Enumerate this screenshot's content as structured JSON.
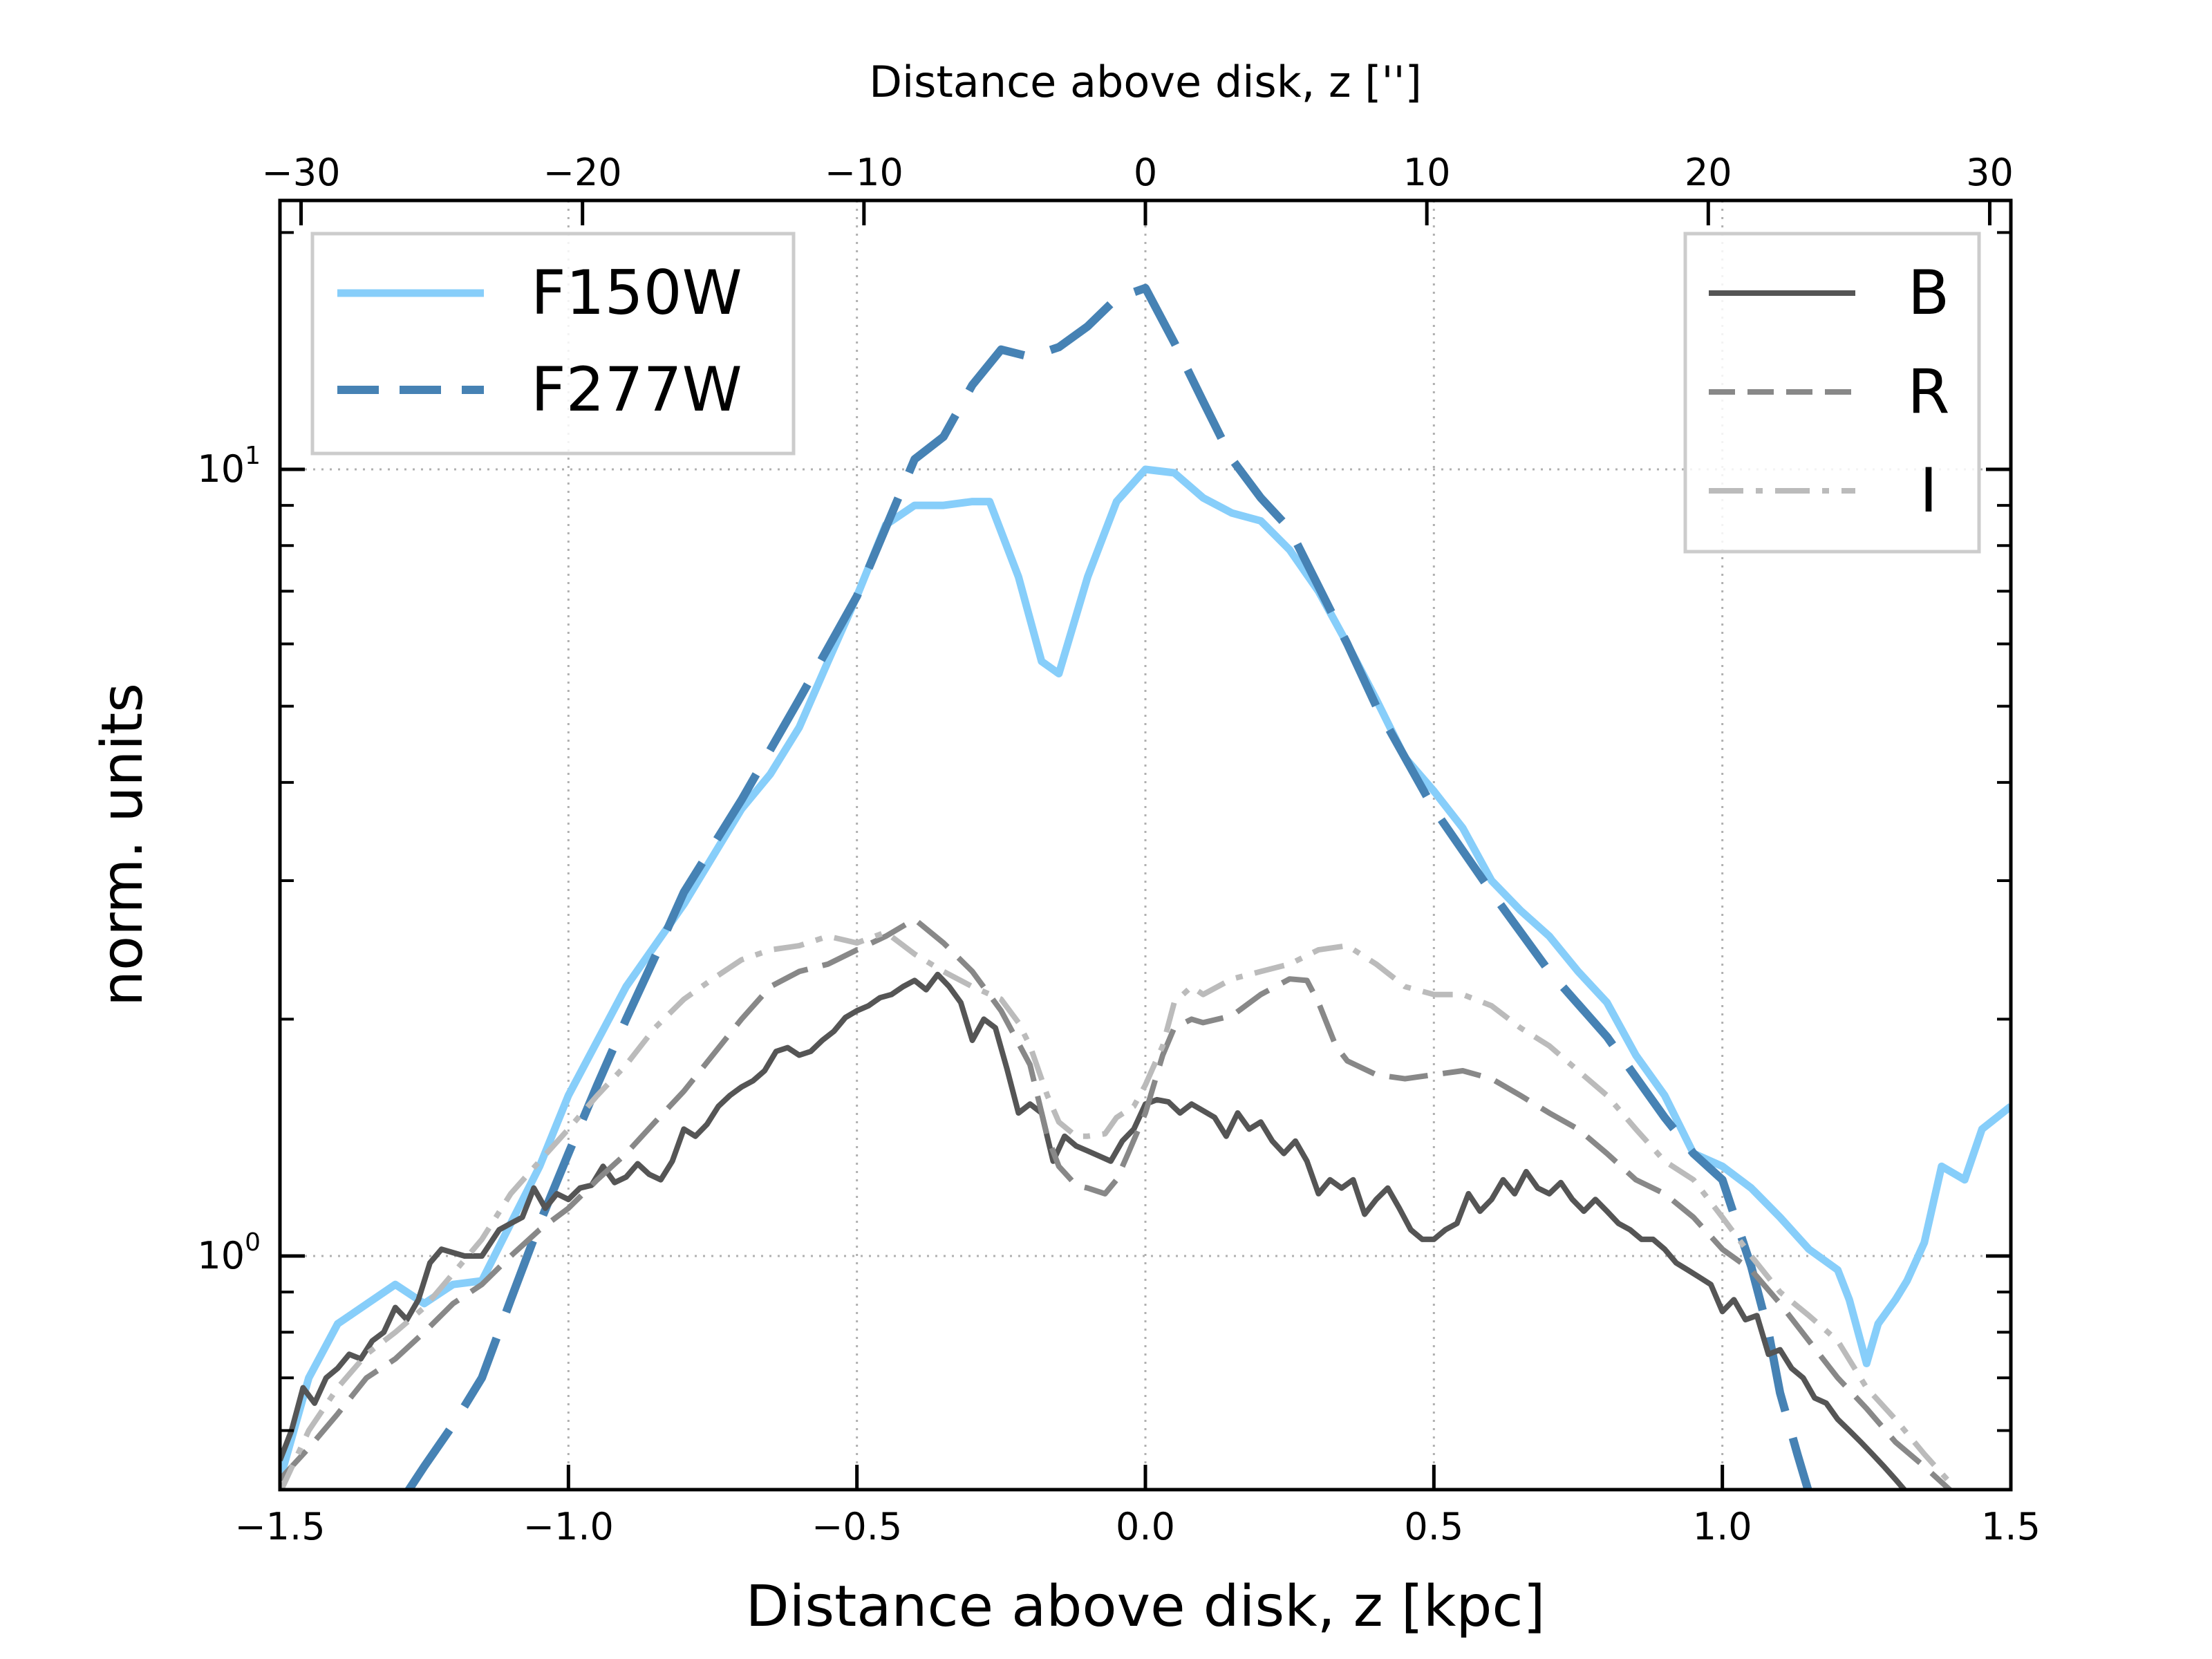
{
  "chart_data": {
    "type": "line",
    "xlabel": "Distance above disk, z [kpc]",
    "ylabel": "norm. units",
    "top_xlabel": "Distance above disk, z ['']",
    "xlim": [
      -1.5,
      1.5
    ],
    "ylim": [
      0.5,
      20
    ],
    "yscale": "log",
    "grid": true,
    "x_ticks": [
      -1.5,
      -1.0,
      -0.5,
      0.0,
      0.5,
      1.0,
      1.5
    ],
    "x_tick_labels": [
      "−1.5",
      "−1.0",
      "−0.5",
      "0.0",
      "0.5",
      "1.0",
      "1.5"
    ],
    "top_ticks": [
      -30,
      -20,
      -10,
      0,
      10,
      20,
      30
    ],
    "top_tick_labels": [
      "−30",
      "−20",
      "−10",
      "0",
      "10",
      "20",
      "30"
    ],
    "top_arcsec_per_kpc": 20.5,
    "y_tick_values": [
      1,
      10
    ],
    "y_tick_base": "10",
    "y_tick_exponents": [
      "0",
      "1"
    ],
    "legends": [
      {
        "position": "upper-left",
        "entries": [
          "F150W",
          "F277W"
        ]
      },
      {
        "position": "upper-right",
        "entries": [
          "B",
          "R",
          "I"
        ]
      }
    ],
    "series": [
      {
        "name": "F150W",
        "color": "#87CEFA",
        "style": "solid",
        "x": [
          -1.5,
          -1.45,
          -1.4,
          -1.3,
          -1.25,
          -1.2,
          -1.15,
          -1.1,
          -1.05,
          -1.0,
          -0.9,
          -0.8,
          -0.7,
          -0.65,
          -0.6,
          -0.55,
          -0.5,
          -0.45,
          -0.4,
          -0.35,
          -0.3,
          -0.27,
          -0.22,
          -0.18,
          -0.15,
          -0.1,
          -0.05,
          0.0,
          0.05,
          0.1,
          0.15,
          0.2,
          0.25,
          0.3,
          0.35,
          0.4,
          0.45,
          0.5,
          0.55,
          0.6,
          0.65,
          0.7,
          0.75,
          0.8,
          0.85,
          0.9,
          0.95,
          1.0,
          1.05,
          1.1,
          1.15,
          1.2,
          1.22,
          1.25,
          1.27,
          1.3,
          1.32,
          1.35,
          1.38,
          1.42,
          1.45,
          1.5
        ],
        "y": [
          0.52,
          0.7,
          0.82,
          0.92,
          0.87,
          0.92,
          0.93,
          1.1,
          1.3,
          1.6,
          2.2,
          2.8,
          3.7,
          4.1,
          4.7,
          5.7,
          6.9,
          8.5,
          9.0,
          9.0,
          9.1,
          9.1,
          7.3,
          5.7,
          5.5,
          7.3,
          9.1,
          10.0,
          9.9,
          9.2,
          8.8,
          8.6,
          7.9,
          7.0,
          6.0,
          5.1,
          4.3,
          3.9,
          3.5,
          3.0,
          2.75,
          2.55,
          2.3,
          2.1,
          1.8,
          1.6,
          1.35,
          1.3,
          1.22,
          1.12,
          1.02,
          0.96,
          0.88,
          0.73,
          0.82,
          0.88,
          0.93,
          1.04,
          1.3,
          1.25,
          1.45,
          1.55
        ]
      },
      {
        "name": "F277W",
        "color": "#4682B4",
        "style": "dashed",
        "x": [
          -1.28,
          -1.25,
          -1.2,
          -1.15,
          -1.1,
          -1.05,
          -1.0,
          -0.95,
          -0.9,
          -0.85,
          -0.8,
          -0.7,
          -0.6,
          -0.5,
          -0.4,
          -0.35,
          -0.3,
          -0.25,
          -0.2,
          -0.15,
          -0.1,
          -0.05,
          0.0,
          0.05,
          0.1,
          0.15,
          0.2,
          0.25,
          0.3,
          0.35,
          0.4,
          0.45,
          0.5,
          0.6,
          0.7,
          0.8,
          0.9,
          0.95,
          1.0,
          1.05,
          1.08,
          1.1,
          1.13,
          1.15
        ],
        "y": [
          0.5,
          0.54,
          0.61,
          0.7,
          0.88,
          1.1,
          1.35,
          1.65,
          2.0,
          2.4,
          2.9,
          3.8,
          5.1,
          6.9,
          10.3,
          11.0,
          12.8,
          14.2,
          13.9,
          14.3,
          15.2,
          16.5,
          17.0,
          14.5,
          12.2,
          10.3,
          9.2,
          8.4,
          7.1,
          6.0,
          5.0,
          4.3,
          3.7,
          2.9,
          2.3,
          1.9,
          1.5,
          1.35,
          1.25,
          0.97,
          0.8,
          0.67,
          0.56,
          0.5
        ]
      },
      {
        "name": "B",
        "color": "#555555",
        "style": "solid",
        "x": [
          -1.5,
          -1.48,
          -1.46,
          -1.44,
          -1.42,
          -1.4,
          -1.38,
          -1.36,
          -1.34,
          -1.32,
          -1.3,
          -1.28,
          -1.26,
          -1.24,
          -1.22,
          -1.2,
          -1.18,
          -1.15,
          -1.12,
          -1.1,
          -1.08,
          -1.06,
          -1.04,
          -1.02,
          -1.0,
          -0.98,
          -0.96,
          -0.94,
          -0.92,
          -0.9,
          -0.88,
          -0.86,
          -0.84,
          -0.82,
          -0.8,
          -0.78,
          -0.76,
          -0.74,
          -0.72,
          -0.7,
          -0.68,
          -0.66,
          -0.64,
          -0.62,
          -0.6,
          -0.58,
          -0.56,
          -0.54,
          -0.52,
          -0.5,
          -0.48,
          -0.46,
          -0.44,
          -0.42,
          -0.4,
          -0.38,
          -0.36,
          -0.34,
          -0.32,
          -0.3,
          -0.28,
          -0.26,
          -0.24,
          -0.22,
          -0.2,
          -0.18,
          -0.16,
          -0.14,
          -0.12,
          -0.1,
          -0.08,
          -0.06,
          -0.04,
          -0.02,
          0.0,
          0.02,
          0.04,
          0.06,
          0.08,
          0.1,
          0.12,
          0.14,
          0.16,
          0.18,
          0.2,
          0.22,
          0.24,
          0.26,
          0.28,
          0.3,
          0.32,
          0.34,
          0.36,
          0.38,
          0.4,
          0.42,
          0.44,
          0.46,
          0.48,
          0.5,
          0.52,
          0.54,
          0.56,
          0.58,
          0.6,
          0.62,
          0.64,
          0.66,
          0.68,
          0.7,
          0.72,
          0.74,
          0.76,
          0.78,
          0.8,
          0.82,
          0.84,
          0.86,
          0.88,
          0.9,
          0.92,
          0.94,
          0.96,
          0.98,
          1.0,
          1.02,
          1.04,
          1.06,
          1.08,
          1.1,
          1.12,
          1.14,
          1.16,
          1.18,
          1.2,
          1.22,
          1.24,
          1.26,
          1.28,
          1.3,
          1.32,
          1.34,
          1.36,
          1.38
        ],
        "y": [
          0.55,
          0.6,
          0.68,
          0.65,
          0.7,
          0.72,
          0.75,
          0.74,
          0.78,
          0.8,
          0.86,
          0.83,
          0.88,
          0.98,
          1.02,
          1.01,
          1.0,
          1.0,
          1.08,
          1.1,
          1.12,
          1.22,
          1.15,
          1.2,
          1.18,
          1.22,
          1.23,
          1.3,
          1.24,
          1.26,
          1.31,
          1.27,
          1.25,
          1.32,
          1.45,
          1.42,
          1.47,
          1.55,
          1.6,
          1.64,
          1.67,
          1.72,
          1.82,
          1.84,
          1.8,
          1.82,
          1.88,
          1.93,
          2.01,
          2.05,
          2.08,
          2.13,
          2.15,
          2.2,
          2.24,
          2.18,
          2.28,
          2.2,
          2.1,
          1.88,
          2.0,
          1.95,
          1.73,
          1.52,
          1.56,
          1.52,
          1.32,
          1.42,
          1.38,
          1.36,
          1.34,
          1.32,
          1.4,
          1.45,
          1.56,
          1.58,
          1.57,
          1.52,
          1.56,
          1.53,
          1.5,
          1.42,
          1.52,
          1.45,
          1.48,
          1.4,
          1.35,
          1.4,
          1.32,
          1.2,
          1.25,
          1.22,
          1.25,
          1.13,
          1.18,
          1.22,
          1.15,
          1.08,
          1.05,
          1.05,
          1.08,
          1.1,
          1.2,
          1.14,
          1.18,
          1.25,
          1.2,
          1.28,
          1.22,
          1.2,
          1.24,
          1.18,
          1.14,
          1.18,
          1.14,
          1.1,
          1.08,
          1.05,
          1.05,
          1.02,
          0.98,
          0.96,
          0.94,
          0.92,
          0.85,
          0.88,
          0.83,
          0.84,
          0.75,
          0.76,
          0.72,
          0.7,
          0.66,
          0.65,
          0.62,
          0.6,
          0.58,
          0.56,
          0.54,
          0.52,
          0.5,
          0.49,
          0.48,
          0.47
        ]
      },
      {
        "name": "R",
        "color": "#888888",
        "style": "dashed",
        "x": [
          -1.5,
          -1.45,
          -1.4,
          -1.35,
          -1.3,
          -1.25,
          -1.2,
          -1.15,
          -1.1,
          -1.05,
          -1.0,
          -0.95,
          -0.9,
          -0.85,
          -0.8,
          -0.75,
          -0.7,
          -0.65,
          -0.6,
          -0.55,
          -0.5,
          -0.45,
          -0.4,
          -0.35,
          -0.3,
          -0.25,
          -0.2,
          -0.17,
          -0.15,
          -0.12,
          -0.1,
          -0.07,
          -0.05,
          -0.03,
          0.0,
          0.03,
          0.05,
          0.08,
          0.1,
          0.15,
          0.2,
          0.25,
          0.28,
          0.3,
          0.33,
          0.35,
          0.4,
          0.45,
          0.5,
          0.55,
          0.6,
          0.65,
          0.7,
          0.75,
          0.8,
          0.85,
          0.9,
          0.95,
          1.0,
          1.05,
          1.1,
          1.15,
          1.2,
          1.25,
          1.3,
          1.35,
          1.4
        ],
        "y": [
          0.52,
          0.57,
          0.63,
          0.7,
          0.74,
          0.8,
          0.87,
          0.92,
          1.0,
          1.08,
          1.15,
          1.25,
          1.35,
          1.48,
          1.62,
          1.8,
          2.0,
          2.2,
          2.3,
          2.35,
          2.45,
          2.55,
          2.68,
          2.5,
          2.3,
          2.05,
          1.75,
          1.42,
          1.3,
          1.23,
          1.22,
          1.2,
          1.25,
          1.35,
          1.52,
          1.8,
          1.95,
          2.0,
          1.98,
          2.02,
          2.15,
          2.25,
          2.24,
          2.1,
          1.85,
          1.77,
          1.7,
          1.68,
          1.7,
          1.72,
          1.68,
          1.6,
          1.52,
          1.45,
          1.35,
          1.25,
          1.2,
          1.12,
          1.02,
          0.96,
          0.87,
          0.78,
          0.7,
          0.64,
          0.58,
          0.54,
          0.5
        ]
      },
      {
        "name": "I",
        "color": "#BBBBBB",
        "style": "dashdot",
        "x": [
          -1.5,
          -1.45,
          -1.4,
          -1.35,
          -1.3,
          -1.25,
          -1.2,
          -1.15,
          -1.1,
          -1.05,
          -1.0,
          -0.95,
          -0.9,
          -0.85,
          -0.8,
          -0.75,
          -0.7,
          -0.65,
          -0.6,
          -0.55,
          -0.5,
          -0.45,
          -0.4,
          -0.35,
          -0.3,
          -0.25,
          -0.22,
          -0.2,
          -0.17,
          -0.15,
          -0.12,
          -0.1,
          -0.07,
          -0.05,
          -0.02,
          0.0,
          0.03,
          0.05,
          0.08,
          0.1,
          0.15,
          0.2,
          0.25,
          0.3,
          0.35,
          0.4,
          0.45,
          0.5,
          0.55,
          0.6,
          0.65,
          0.7,
          0.75,
          0.8,
          0.85,
          0.9,
          0.95,
          1.0,
          1.05,
          1.1,
          1.15,
          1.2,
          1.25,
          1.3,
          1.35,
          1.4
        ],
        "y": [
          0.5,
          0.6,
          0.68,
          0.75,
          0.8,
          0.86,
          0.95,
          1.05,
          1.2,
          1.32,
          1.45,
          1.6,
          1.75,
          1.95,
          2.12,
          2.25,
          2.38,
          2.45,
          2.48,
          2.55,
          2.5,
          2.58,
          2.42,
          2.3,
          2.2,
          2.12,
          1.98,
          1.85,
          1.6,
          1.48,
          1.42,
          1.42,
          1.43,
          1.5,
          1.55,
          1.65,
          1.85,
          2.1,
          2.2,
          2.15,
          2.25,
          2.3,
          2.35,
          2.45,
          2.48,
          2.35,
          2.2,
          2.15,
          2.15,
          2.08,
          1.95,
          1.85,
          1.72,
          1.6,
          1.45,
          1.32,
          1.25,
          1.12,
          1.0,
          0.9,
          0.84,
          0.78,
          0.68,
          0.62,
          0.56,
          0.51
        ]
      }
    ]
  }
}
